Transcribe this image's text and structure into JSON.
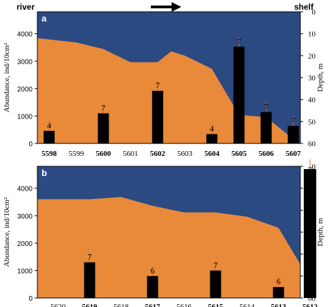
{
  "header": {
    "left_label": "river",
    "right_label": "shelf"
  },
  "colors": {
    "sea": "#2b4a82",
    "sediment": "#e88a3a",
    "bar": "#000000",
    "whisker": "#e06a28"
  },
  "chart_data": [
    {
      "type": "bar",
      "panel_label": "a",
      "ylabel": "Abundance, ind/10cm²",
      "y2label": "Depth, m",
      "ylim": [
        0,
        4800
      ],
      "y_ticks": [
        0,
        1000,
        2000,
        3000,
        4000
      ],
      "y2lim": [
        0,
        60
      ],
      "y2_ticks": [
        0,
        10,
        20,
        30,
        40,
        50,
        60
      ],
      "categories": [
        "5598",
        "5599",
        "5600",
        "5601",
        "5602",
        "5603",
        "5604",
        "5605",
        "5606",
        "5607"
      ],
      "bold_categories": [
        "5598",
        "5600",
        "5602",
        "5604",
        "5605",
        "5606",
        "5607"
      ],
      "values": [
        460,
        null,
        1100,
        null,
        1920,
        null,
        340,
        3530,
        1150,
        640
      ],
      "labels": [
        "4",
        null,
        "7",
        null,
        "7",
        null,
        "4",
        "7",
        "7",
        "7"
      ],
      "depth_profile": [
        {
          "x": 5598,
          "depth": 12
        },
        {
          "x": 5599,
          "depth": 14
        },
        {
          "x": 5600,
          "depth": 17
        },
        {
          "x": 5601,
          "depth": 23
        },
        {
          "x": 5602,
          "depth": 23
        },
        {
          "x": 5602.5,
          "depth": 18
        },
        {
          "x": 5603,
          "depth": 20
        },
        {
          "x": 5604,
          "depth": 26
        },
        {
          "x": 5605,
          "depth": 47
        },
        {
          "x": 5606,
          "depth": 48
        },
        {
          "x": 5607,
          "depth": 58
        }
      ]
    },
    {
      "type": "bar",
      "panel_label": "b",
      "ylabel": "Abundance, ind/10cm²",
      "y2label": "Depth, m",
      "ylim": [
        0,
        4800
      ],
      "y_ticks": [
        0,
        1000,
        2000,
        3000,
        4000
      ],
      "y2lim": [
        0,
        60
      ],
      "y2_ticks": [
        0,
        10,
        20,
        30,
        40,
        50,
        60
      ],
      "categories": [
        "5620",
        "5619",
        "5618",
        "5617",
        "5616",
        "5615",
        "5614",
        "5613",
        "5612"
      ],
      "bold_categories": [
        "5619",
        "5617",
        "5615",
        "5613",
        "5612"
      ],
      "values": [
        null,
        1300,
        null,
        800,
        null,
        1000,
        null,
        400,
        4700
      ],
      "labels": [
        null,
        "7",
        null,
        "6",
        null,
        "7",
        null,
        "6",
        "7"
      ],
      "depth_profile": [
        {
          "x": 0,
          "depth": 15
        },
        {
          "x": 1,
          "depth": 15
        },
        {
          "x": 2,
          "depth": 14
        },
        {
          "x": 3,
          "depth": 18
        },
        {
          "x": 4,
          "depth": 21
        },
        {
          "x": 5,
          "depth": 21
        },
        {
          "x": 6,
          "depth": 23
        },
        {
          "x": 7,
          "depth": 28
        },
        {
          "x": 8,
          "depth": 52
        }
      ]
    }
  ]
}
